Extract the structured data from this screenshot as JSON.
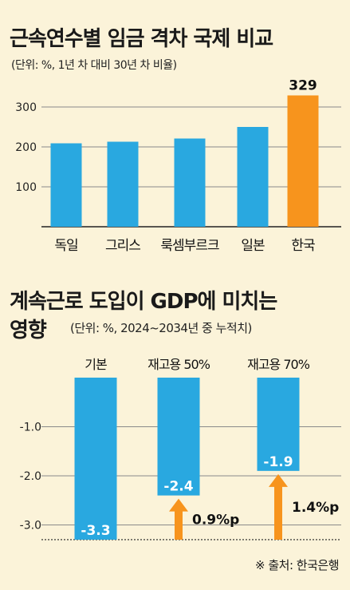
{
  "chart1": {
    "title": "근속연수별 임금 격차 국제 비교",
    "subtitle": "(단위: %, 1년 차 대비 30년 차 비율)",
    "chart_data": {
      "type": "bar",
      "categories": [
        "독일",
        "그리스",
        "룩셈부르크",
        "일본",
        "한국"
      ],
      "values": [
        209,
        213,
        221,
        250,
        329
      ],
      "highlight_label": "329",
      "y_ticks": [
        "300",
        "200",
        "100"
      ],
      "y_tick_values": [
        300,
        200,
        100
      ],
      "ylim": [
        0,
        340
      ],
      "grid": true,
      "colors": {
        "default": "#29a8e0",
        "highlight": "#f7941d"
      }
    }
  },
  "chart2": {
    "title_line1": "계속근로 도입이 GDP에 미치는",
    "title_line2": "영향",
    "subtitle": "(단위: %, 2024~2034년 중 누적치)",
    "chart_data": {
      "type": "bar",
      "categories": [
        "기본",
        "재고용 50%",
        "재고용 70%"
      ],
      "values": [
        -3.3,
        -2.4,
        -1.9
      ],
      "value_labels": [
        "-3.3",
        "-2.4",
        "-1.9"
      ],
      "y_ticks": [
        "-1.0",
        "-2.0",
        "-3.0"
      ],
      "y_tick_values": [
        -1.0,
        -2.0,
        -3.0
      ],
      "ylim": [
        -3.3,
        0
      ],
      "grid": true,
      "annotations": [
        {
          "bar": 1,
          "label": "0.9%p",
          "from": -3.3,
          "to": -2.4
        },
        {
          "bar": 2,
          "label": "1.4%p",
          "from": -3.3,
          "to": -1.9
        }
      ],
      "colors": {
        "bar": "#29a8e0",
        "arrow": "#f7941d"
      }
    }
  },
  "source": "※ 출처: 한국은행"
}
